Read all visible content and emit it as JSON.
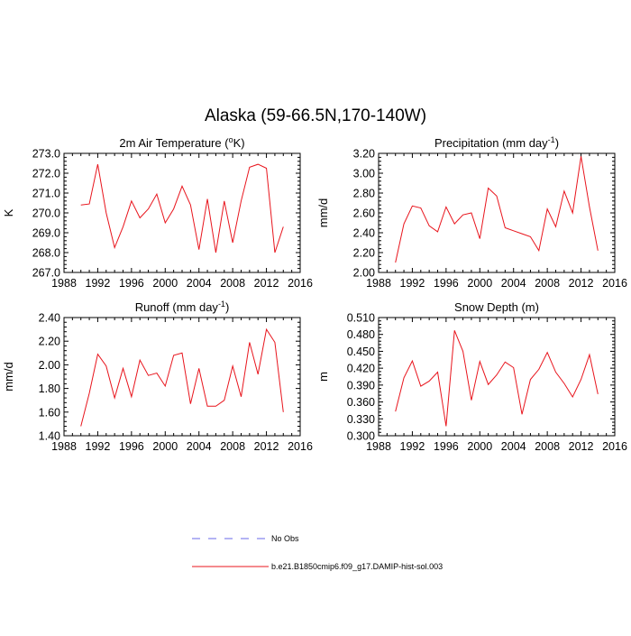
{
  "figure": {
    "title": "Alaska (59-66.5N,170-140W)"
  },
  "colors": {
    "model_line": "#e8141c",
    "obs_line": "#6a6ae8",
    "axis": "#000000"
  },
  "legend": {
    "position": "bottom-center",
    "items": [
      {
        "label": "No Obs",
        "style": "dashed",
        "color": "#6a6ae8"
      },
      {
        "label": "b.e21.B1850cmip6.f09_g17.DAMIP-hist-sol.003",
        "style": "solid",
        "color": "#e8141c"
      }
    ]
  },
  "chart_data": [
    {
      "type": "line",
      "title": "2m Air Temperature (°K)",
      "title_base": "2m Air Temperature (",
      "title_sup": "o",
      "title_rest": "K)",
      "ylabel": "K",
      "xlabel": "",
      "xlim": [
        1988,
        2016
      ],
      "xticks": [
        1988,
        1992,
        1996,
        2000,
        2004,
        2008,
        2012,
        2016
      ],
      "ylim": [
        267.0,
        273.0
      ],
      "yticks": [
        267.0,
        268.0,
        269.0,
        270.0,
        271.0,
        272.0,
        273.0
      ],
      "ytick_decimals": 1,
      "grid": false,
      "series": [
        {
          "x": [
            1990,
            1991,
            1992,
            1993,
            1994,
            1995,
            1996,
            1997,
            1998,
            1999,
            2000,
            2001,
            2002,
            2003,
            2004,
            2005,
            2006,
            2007,
            2008,
            2009,
            2010,
            2011,
            2012,
            2013,
            2014
          ],
          "values": [
            270.4,
            270.45,
            272.45,
            270.0,
            268.25,
            269.3,
            270.6,
            269.75,
            270.2,
            270.95,
            269.5,
            270.2,
            271.35,
            270.4,
            268.15,
            270.7,
            268.0,
            270.6,
            268.5,
            270.6,
            272.3,
            272.45,
            272.25,
            268.0,
            269.3
          ]
        }
      ]
    },
    {
      "type": "line",
      "title": "Precipitation (mm day⁻¹)",
      "title_base": "Precipitation (mm day",
      "title_sup": "-1",
      "title_rest": ")",
      "ylabel": "mm/d",
      "xlabel": "",
      "xlim": [
        1988,
        2016
      ],
      "xticks": [
        1988,
        1992,
        1996,
        2000,
        2004,
        2008,
        2012,
        2016
      ],
      "ylim": [
        2.0,
        3.2
      ],
      "yticks": [
        2.0,
        2.2,
        2.4,
        2.6,
        2.8,
        3.0,
        3.2
      ],
      "ytick_decimals": 2,
      "grid": false,
      "series": [
        {
          "x": [
            1990,
            1991,
            1992,
            1993,
            1994,
            1995,
            1996,
            1997,
            1998,
            1999,
            2000,
            2001,
            2002,
            2003,
            2004,
            2005,
            2006,
            2007,
            2008,
            2009,
            2010,
            2011,
            2012,
            2013,
            2014
          ],
          "values": [
            2.1,
            2.49,
            2.67,
            2.65,
            2.47,
            2.41,
            2.66,
            2.49,
            2.58,
            2.6,
            2.34,
            2.85,
            2.77,
            2.45,
            2.42,
            2.39,
            2.36,
            2.22,
            2.64,
            2.46,
            2.82,
            2.6,
            3.17,
            2.66,
            2.22
          ]
        }
      ]
    },
    {
      "type": "line",
      "title": "Runoff (mm day⁻¹)",
      "title_base": "Runoff (mm day",
      "title_sup": "-1",
      "title_rest": ")",
      "ylabel": "mm/d",
      "xlabel": "",
      "xlim": [
        1988,
        2016
      ],
      "xticks": [
        1988,
        1992,
        1996,
        2000,
        2004,
        2008,
        2012,
        2016
      ],
      "ylim": [
        1.4,
        2.4
      ],
      "yticks": [
        1.4,
        1.6,
        1.8,
        2.0,
        2.2,
        2.4
      ],
      "ytick_decimals": 2,
      "grid": false,
      "series": [
        {
          "x": [
            1990,
            1991,
            1992,
            1993,
            1994,
            1995,
            1996,
            1997,
            1998,
            1999,
            2000,
            2001,
            2002,
            2003,
            2004,
            2005,
            2006,
            2007,
            2008,
            2009,
            2010,
            2011,
            2012,
            2013,
            2014
          ],
          "values": [
            1.48,
            1.76,
            2.09,
            1.99,
            1.72,
            1.97,
            1.73,
            2.04,
            1.91,
            1.93,
            1.82,
            2.08,
            2.1,
            1.67,
            1.97,
            1.65,
            1.65,
            1.7,
            1.99,
            1.73,
            2.19,
            1.92,
            2.3,
            2.19,
            1.6
          ]
        }
      ]
    },
    {
      "type": "line",
      "title": "Snow Depth (m)",
      "title_base": "Snow Depth (m)",
      "title_sup": "",
      "title_rest": "",
      "ylabel": "m",
      "xlabel": "",
      "xlim": [
        1988,
        2016
      ],
      "xticks": [
        1988,
        1992,
        1996,
        2000,
        2004,
        2008,
        2012,
        2016
      ],
      "ylim": [
        0.3,
        0.51
      ],
      "yticks": [
        0.3,
        0.33,
        0.36,
        0.39,
        0.42,
        0.45,
        0.48,
        0.51
      ],
      "ytick_decimals": 3,
      "grid": false,
      "series": [
        {
          "x": [
            1990,
            1991,
            1992,
            1993,
            1994,
            1995,
            1996,
            1997,
            1998,
            1999,
            2000,
            2001,
            2002,
            2003,
            2004,
            2005,
            2006,
            2007,
            2008,
            2009,
            2010,
            2011,
            2012,
            2013,
            2014
          ],
          "values": [
            0.343,
            0.403,
            0.433,
            0.388,
            0.397,
            0.413,
            0.317,
            0.487,
            0.45,
            0.363,
            0.432,
            0.391,
            0.408,
            0.431,
            0.421,
            0.338,
            0.4,
            0.418,
            0.448,
            0.413,
            0.393,
            0.369,
            0.4,
            0.444,
            0.374
          ]
        }
      ]
    }
  ]
}
